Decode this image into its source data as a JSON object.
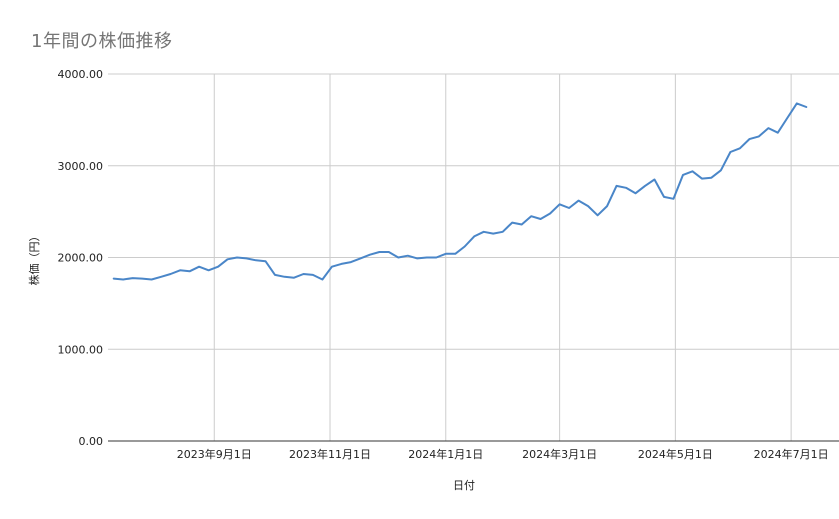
{
  "chart_data": {
    "type": "line",
    "title": "1年間の株価推移",
    "xlabel": "日付",
    "ylabel": "株価（円）",
    "ylim": [
      0,
      4000
    ],
    "yticks": [
      "0.00",
      "1000.00",
      "2000.00",
      "3000.00",
      "4000.00"
    ],
    "xticks": [
      "2023年9月1日",
      "2023年11月1日",
      "2024年1月1日",
      "2024年3月1日",
      "2024年5月1日",
      "2024年7月1日"
    ],
    "grid": true,
    "legend": "none",
    "color": "#4a86c8",
    "series": [
      {
        "x": [
          "2023-07-10",
          "2023-07-15",
          "2023-07-20",
          "2023-07-25",
          "2023-07-30",
          "2023-08-04",
          "2023-08-09",
          "2023-08-14",
          "2023-08-19",
          "2023-08-24",
          "2023-08-29",
          "2023-09-03",
          "2023-09-08",
          "2023-09-13",
          "2023-09-18",
          "2023-09-23",
          "2023-09-28",
          "2023-10-03",
          "2023-10-08",
          "2023-10-13",
          "2023-10-18",
          "2023-10-23",
          "2023-10-28",
          "2023-11-02",
          "2023-11-07",
          "2023-11-12",
          "2023-11-17",
          "2023-11-22",
          "2023-11-27",
          "2023-12-02",
          "2023-12-07",
          "2023-12-12",
          "2023-12-17",
          "2023-12-22",
          "2023-12-27",
          "2024-01-01",
          "2024-01-06",
          "2024-01-11",
          "2024-01-16",
          "2024-01-21",
          "2024-01-26",
          "2024-01-31",
          "2024-02-05",
          "2024-02-10",
          "2024-02-15",
          "2024-02-20",
          "2024-02-25",
          "2024-03-01",
          "2024-03-06",
          "2024-03-11",
          "2024-03-16",
          "2024-03-21",
          "2024-03-26",
          "2024-03-31",
          "2024-04-05",
          "2024-04-10",
          "2024-04-15",
          "2024-04-20",
          "2024-04-25",
          "2024-04-30",
          "2024-05-05",
          "2024-05-10",
          "2024-05-15",
          "2024-05-20",
          "2024-05-25",
          "2024-05-30",
          "2024-06-04",
          "2024-06-09",
          "2024-06-14",
          "2024-06-19",
          "2024-06-24",
          "2024-06-29",
          "2024-07-04",
          "2024-07-09"
        ],
        "values": [
          1770,
          1760,
          1775,
          1770,
          1760,
          1790,
          1820,
          1860,
          1850,
          1900,
          1860,
          1900,
          1980,
          2000,
          1990,
          1970,
          1960,
          1810,
          1790,
          1780,
          1820,
          1810,
          1760,
          1900,
          1930,
          1950,
          1990,
          2030,
          2060,
          2060,
          2000,
          2020,
          1990,
          2000,
          2000,
          2040,
          2040,
          2120,
          2230,
          2280,
          2260,
          2280,
          2380,
          2360,
          2450,
          2420,
          2480,
          2580,
          2540,
          2620,
          2560,
          2460,
          2560,
          2780,
          2760,
          2700,
          2780,
          2850,
          2660,
          2640,
          2900,
          2940,
          2860,
          2870,
          2950,
          3150,
          3190,
          3290,
          3320,
          3410,
          3360,
          3520,
          3680,
          3640
        ]
      }
    ]
  }
}
